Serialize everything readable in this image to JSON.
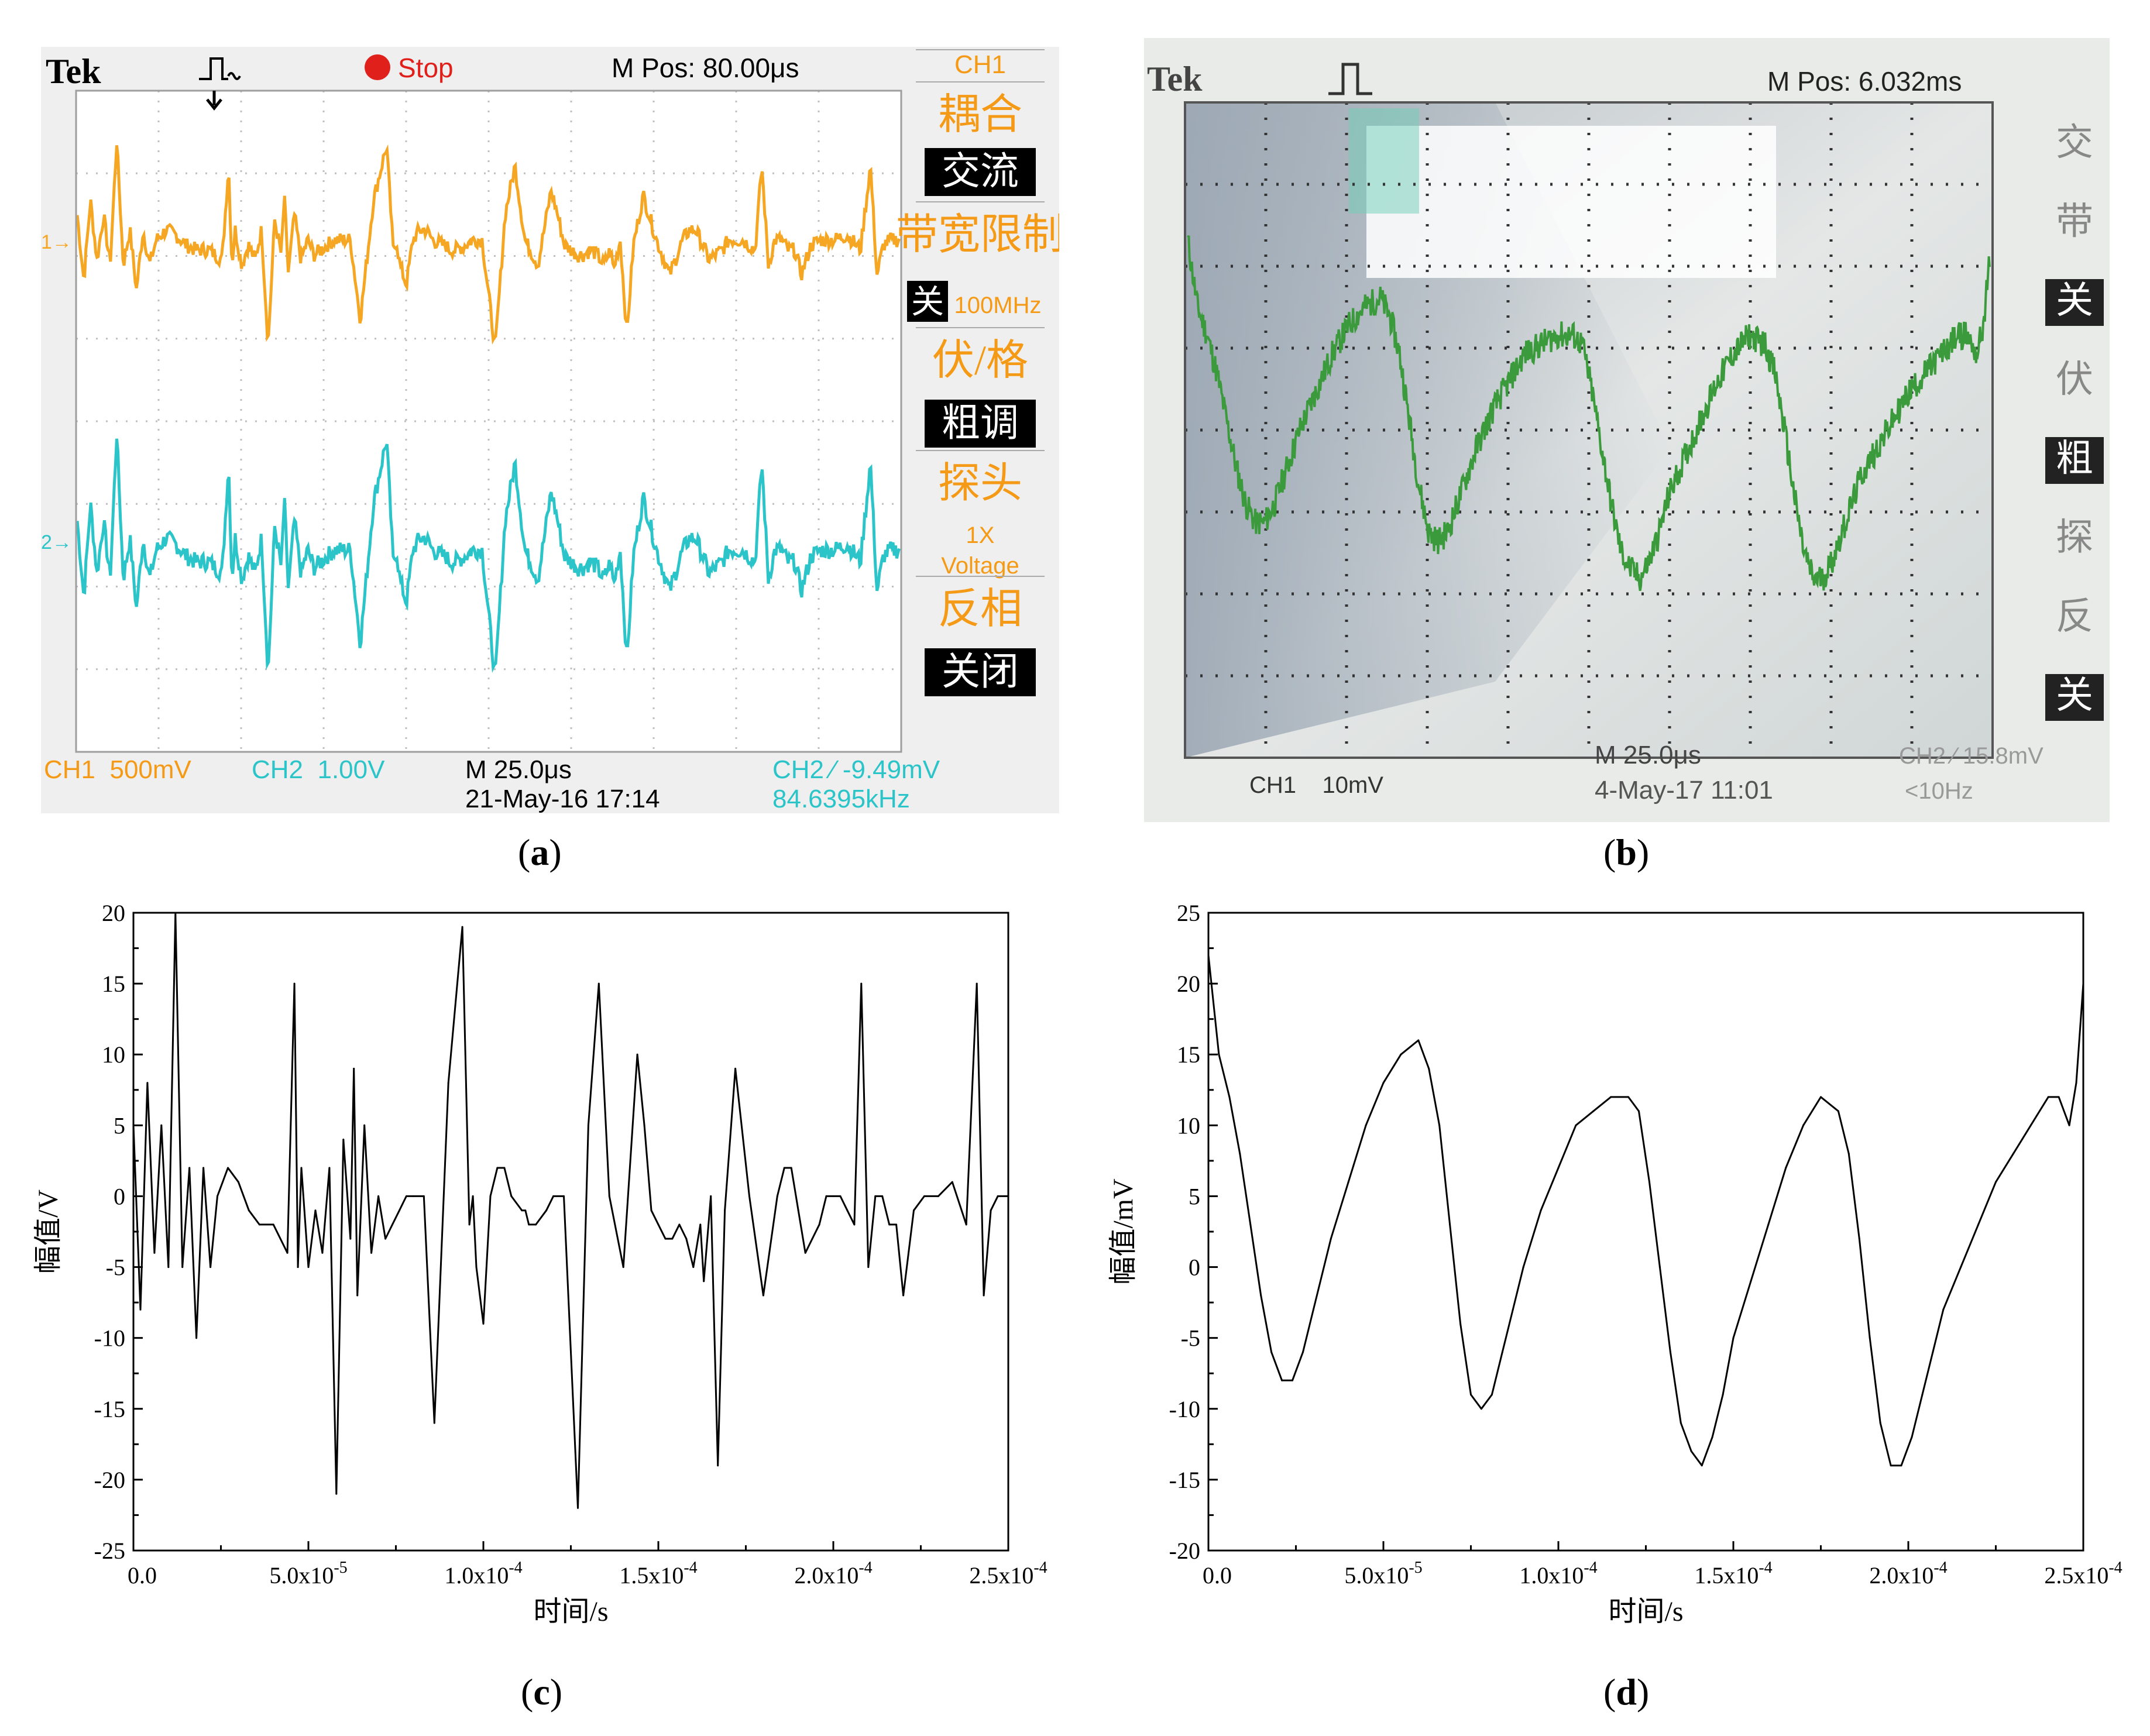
{
  "panels": {
    "a": {
      "caption": "a",
      "header": {
        "brand": "Tek",
        "status": "Stop",
        "mpos": "M Pos: 80.00μs"
      },
      "menu": [
        {
          "text": "CH1",
          "style": "title"
        },
        {
          "text": "耦合",
          "style": "big"
        },
        {
          "text": "交流",
          "style": "inv"
        },
        {
          "text": "带宽限制",
          "style": "big"
        },
        {
          "text": "关",
          "style": "inv-small",
          "extra": "100MHz"
        },
        {
          "text": "伏/格",
          "style": "big"
        },
        {
          "text": "粗调",
          "style": "inv"
        },
        {
          "text": "探头",
          "style": "big"
        },
        {
          "text": "1X",
          "style": "small"
        },
        {
          "text": "Voltage",
          "style": "small"
        },
        {
          "text": "反相",
          "style": "big"
        },
        {
          "text": "关闭",
          "style": "inv"
        }
      ],
      "footer": {
        "ch1": "CH1  500mV",
        "ch2": "CH2  1.00V",
        "time": "M 25.0μs",
        "date": "21-May-16 17:14",
        "trig": "CH2 ∕ -9.49mV",
        "freq": "84.6395kHz"
      },
      "markers": {
        "ch1": "1→",
        "ch2": "2→"
      },
      "colors": {
        "ch1": "#f5a623",
        "ch2": "#2bc4c8",
        "label": "#f59a16",
        "grid": "#bfbfbf"
      }
    },
    "b": {
      "caption": "b",
      "header": {
        "brand": "Tek",
        "mpos": "M Pos: 6.032ms"
      },
      "side_menu": [
        "交",
        "带",
        "关",
        "伏",
        "粗",
        "探",
        "反",
        "关"
      ],
      "footer": {
        "ch1": "CH1    10mV",
        "time": "M 25.0μs",
        "trig": "CH2 ∕ 15.8mV",
        "date": "4-May-17 11:01",
        "freq": "<10Hz"
      },
      "colors": {
        "trace": "#3b9a3b",
        "screen": "#d8e1e3"
      }
    }
  },
  "chart_data": [
    {
      "panel": "c",
      "type": "line",
      "caption": "c",
      "xlabel": "时间/s",
      "ylabel": "幅值/V",
      "xlim": [
        0,
        0.00025
      ],
      "ylim": [
        -25,
        20
      ],
      "xticks": [
        {
          "v": 0,
          "label": "0.0"
        },
        {
          "v": 5e-05,
          "label": "5.0x10",
          "exp": "-5"
        },
        {
          "v": 0.0001,
          "label": "1.0x10",
          "exp": "-4"
        },
        {
          "v": 0.00015,
          "label": "1.5x10",
          "exp": "-4"
        },
        {
          "v": 0.0002,
          "label": "2.0x10",
          "exp": "-4"
        },
        {
          "v": 0.00025,
          "label": "2.5x10",
          "exp": "-4"
        }
      ],
      "yticks": [
        20,
        15,
        10,
        5,
        0,
        -5,
        -10,
        -15,
        -20,
        -25
      ],
      "series": [
        {
          "color": "#000000",
          "x": [
            0,
            2e-06,
            4e-06,
            6e-06,
            8e-06,
            1e-05,
            1.2e-05,
            1.4e-05,
            1.6e-05,
            1.8e-05,
            2e-05,
            2.2e-05,
            2.4e-05,
            2.7e-05,
            3e-05,
            3.3e-05,
            3.6e-05,
            4e-05,
            4.4e-05,
            4.6e-05,
            4.7e-05,
            4.8e-05,
            5e-05,
            5.2e-05,
            5.4e-05,
            5.6e-05,
            5.8e-05,
            6e-05,
            6.2e-05,
            6.3e-05,
            6.4e-05,
            6.6e-05,
            6.8e-05,
            7e-05,
            7.2e-05,
            7.4e-05,
            7.6e-05,
            7.8e-05,
            8e-05,
            8.3e-05,
            8.6e-05,
            9e-05,
            9.4e-05,
            9.6e-05,
            9.7e-05,
            9.8e-05,
            0.0001,
            0.000102,
            0.000104,
            0.000106,
            0.000108,
            0.000111,
            0.000112,
            0.000113,
            0.000115,
            0.000118,
            0.00012,
            0.000123,
            0.000127,
            0.00013,
            0.000133,
            0.000136,
            0.00014,
            0.000144,
            0.000146,
            0.000148,
            0.00015,
            0.000152,
            0.000154,
            0.000156,
            0.000158,
            0.00016,
            0.000162,
            0.000163,
            0.000165,
            0.000167,
            0.000169,
            0.000172,
            0.000176,
            0.00018,
            0.000184,
            0.000186,
            0.000188,
            0.00019,
            0.000192,
            0.000194,
            0.000196,
            0.000198,
            0.0002,
            0.000202,
            0.000204,
            0.000206,
            0.000208,
            0.00021,
            0.000212,
            0.000214,
            0.000216,
            0.000218,
            0.00022,
            0.000223,
            0.000226,
            0.00023,
            0.000234,
            0.000238,
            0.000241,
            0.000243,
            0.000245,
            0.000247,
            0.000249,
            0.00025
          ],
          "y": [
            5,
            -8,
            8,
            -4,
            5,
            -5,
            20,
            -5,
            2,
            -10,
            2,
            -5,
            0,
            2,
            1,
            -1,
            -2,
            -2,
            -4,
            15,
            -5,
            2,
            -5,
            -1,
            -4,
            2,
            -21,
            4,
            -3,
            9,
            -7,
            5,
            -4,
            0,
            -3,
            -2,
            -1,
            0,
            0,
            0,
            -16,
            8,
            19,
            -2,
            0,
            -5,
            -9,
            0,
            2,
            2,
            0,
            -1,
            -1,
            -2,
            -2,
            -1,
            0,
            0,
            -22,
            5,
            15,
            0,
            -5,
            10,
            5,
            -1,
            -2,
            -3,
            -3,
            -2,
            -3,
            -5,
            -2,
            -6,
            0,
            -19,
            -1,
            9,
            0,
            -7,
            0,
            2,
            2,
            -1,
            -4,
            -3,
            -2,
            0,
            0,
            0,
            -1,
            -2,
            15,
            -5,
            0,
            0,
            -2,
            -2,
            -7,
            -1,
            0,
            0,
            1,
            -2,
            15,
            -7,
            -1,
            0,
            0,
            0
          ]
        }
      ]
    },
    {
      "panel": "d",
      "type": "line",
      "caption": "d",
      "xlabel": "时间/s",
      "ylabel": "幅值/mV",
      "xlim": [
        0,
        0.00025
      ],
      "ylim": [
        -20,
        25
      ],
      "xticks": [
        {
          "v": 0,
          "label": "0.0"
        },
        {
          "v": 5e-05,
          "label": "5.0x10",
          "exp": "-5"
        },
        {
          "v": 0.0001,
          "label": "1.0x10",
          "exp": "-4"
        },
        {
          "v": 0.00015,
          "label": "1.5x10",
          "exp": "-4"
        },
        {
          "v": 0.0002,
          "label": "2.0x10",
          "exp": "-4"
        },
        {
          "v": 0.00025,
          "label": "2.5x10",
          "exp": "-4"
        }
      ],
      "yticks": [
        25,
        20,
        15,
        10,
        5,
        0,
        -5,
        -10,
        -15,
        -20
      ],
      "series": [
        {
          "color": "#000000",
          "x": [
            0,
            3e-06,
            6e-06,
            9e-06,
            1.2e-05,
            1.5e-05,
            1.8e-05,
            2.1e-05,
            2.4e-05,
            2.7e-05,
            3e-05,
            3.5e-05,
            4e-05,
            4.5e-05,
            5e-05,
            5.5e-05,
            6e-05,
            6.3e-05,
            6.6e-05,
            6.9e-05,
            7.2e-05,
            7.5e-05,
            7.8e-05,
            8.1e-05,
            8.4e-05,
            8.7e-05,
            9e-05,
            9.5e-05,
            0.0001,
            0.000105,
            0.00011,
            0.000115,
            0.00012,
            0.000123,
            0.000126,
            0.000129,
            0.000132,
            0.000135,
            0.000138,
            0.000141,
            0.000144,
            0.000147,
            0.00015,
            0.000155,
            0.00016,
            0.000165,
            0.00017,
            0.000175,
            0.00018,
            0.000183,
            0.000186,
            0.000189,
            0.000192,
            0.000195,
            0.000198,
            0.000201,
            0.000204,
            0.000207,
            0.00021,
            0.000215,
            0.00022,
            0.000225,
            0.00023,
            0.000235,
            0.00024,
            0.000243,
            0.000246,
            0.000248,
            0.00025
          ],
          "y": [
            22,
            15,
            12,
            8,
            3,
            -2,
            -6,
            -8,
            -8,
            -6,
            -3,
            2,
            6,
            10,
            13,
            15,
            16,
            14,
            10,
            3,
            -4,
            -9,
            -10,
            -9,
            -6,
            -3,
            0,
            4,
            7,
            10,
            11,
            12,
            12,
            11,
            6,
            0,
            -6,
            -11,
            -13,
            -14,
            -12,
            -9,
            -5,
            -1,
            3,
            7,
            10,
            12,
            11,
            8,
            2,
            -5,
            -11,
            -14,
            -14,
            -12,
            -9,
            -6,
            -3,
            0,
            3,
            6,
            8,
            10,
            12,
            12,
            10,
            13,
            20
          ]
        }
      ]
    }
  ]
}
